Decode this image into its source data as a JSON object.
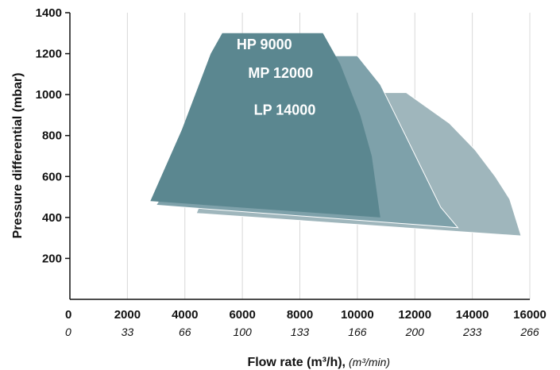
{
  "chart_data": {
    "type": "area",
    "xlabel": "Flow rate (m³/h),",
    "xlabel_secondary": "(m³/min)",
    "ylabel": "Pressure differential (mbar)",
    "xlim": [
      0,
      16000
    ],
    "ylim": [
      0,
      1400
    ],
    "x_ticks": [
      0,
      2000,
      4000,
      6000,
      8000,
      10000,
      12000,
      14000,
      16000
    ],
    "x_tick_labels": [
      "0",
      "2000",
      "4000",
      "6000",
      "8000",
      "10000",
      "12000",
      "14000",
      "16000"
    ],
    "x_secondary_tick_labels": [
      "0",
      "33",
      "66",
      "100",
      "133",
      "166",
      "200",
      "233",
      "266"
    ],
    "y_ticks": [
      200,
      400,
      600,
      800,
      1000,
      1200,
      1400
    ],
    "y_tick_labels": [
      "200",
      "400",
      "600",
      "800",
      "1000",
      "1200",
      "1400"
    ],
    "grid": "vertical",
    "series": [
      {
        "name": "LP 14000",
        "color": "#9fb6bc",
        "points": [
          [
            4400,
            420
          ],
          [
            6100,
            1010
          ],
          [
            11700,
            1010
          ],
          [
            12400,
            940
          ],
          [
            13200,
            860
          ],
          [
            14100,
            730
          ],
          [
            14800,
            600
          ],
          [
            15300,
            490
          ],
          [
            15700,
            310
          ]
        ]
      },
      {
        "name": "MP 12000",
        "color": "#7ea1aa",
        "points": [
          [
            3000,
            460
          ],
          [
            4100,
            720
          ],
          [
            5100,
            960
          ],
          [
            6000,
            1190
          ],
          [
            10000,
            1190
          ],
          [
            10800,
            1050
          ],
          [
            11500,
            850
          ],
          [
            12200,
            650
          ],
          [
            12900,
            450
          ],
          [
            13500,
            350
          ]
        ]
      },
      {
        "name": "HP 9000",
        "color": "#5b8790",
        "points": [
          [
            2800,
            480
          ],
          [
            3900,
            830
          ],
          [
            4900,
            1200
          ],
          [
            5300,
            1300
          ],
          [
            8800,
            1300
          ],
          [
            9400,
            1150
          ],
          [
            10100,
            900
          ],
          [
            10500,
            700
          ],
          [
            10700,
            500
          ],
          [
            10800,
            400
          ]
        ]
      }
    ]
  }
}
